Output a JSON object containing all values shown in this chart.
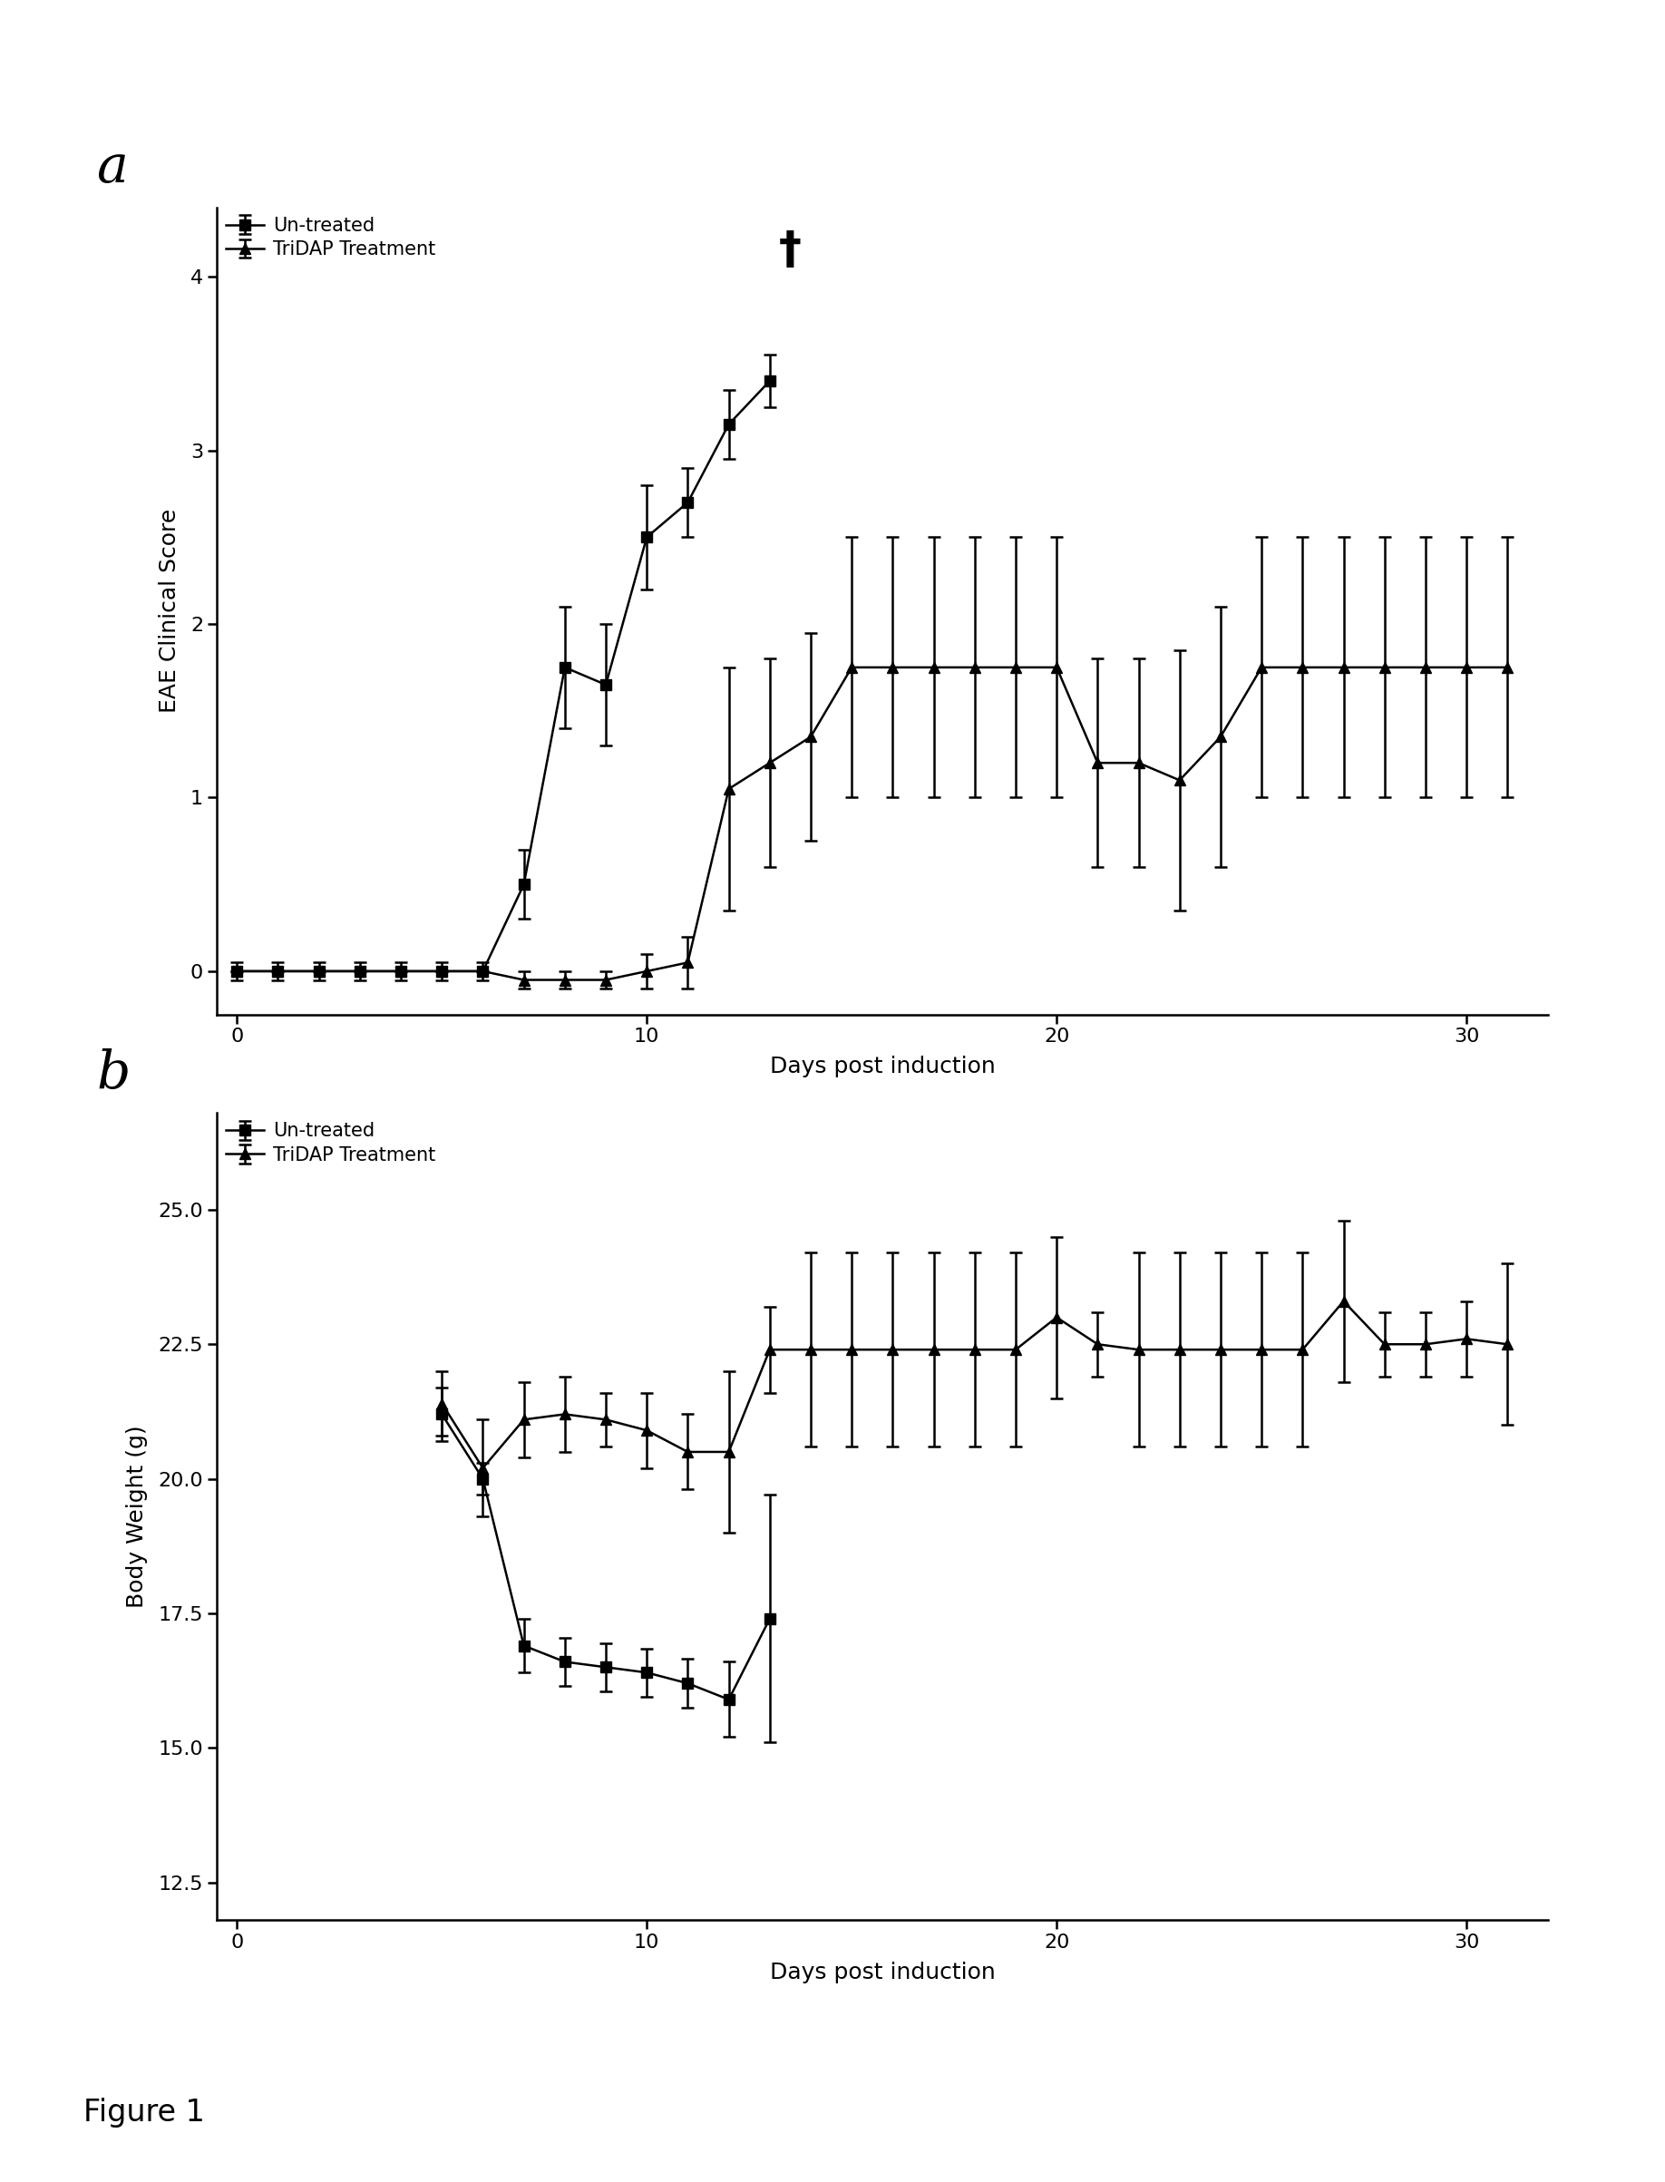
{
  "panel_a": {
    "untreated_x": [
      0,
      1,
      2,
      3,
      4,
      5,
      6,
      7,
      8,
      9,
      10,
      11,
      12,
      13
    ],
    "untreated_y": [
      0,
      0,
      0,
      0,
      0,
      0,
      0,
      0.5,
      1.75,
      1.65,
      2.5,
      2.7,
      3.15,
      3.4
    ],
    "untreated_yerr": [
      0.05,
      0.05,
      0.05,
      0.05,
      0.05,
      0.05,
      0.05,
      0.2,
      0.35,
      0.35,
      0.3,
      0.2,
      0.2,
      0.15
    ],
    "tridap_x": [
      0,
      1,
      2,
      3,
      4,
      5,
      6,
      7,
      8,
      9,
      10,
      11,
      12,
      13,
      14,
      15,
      16,
      17,
      18,
      19,
      20,
      21,
      22,
      23,
      24,
      25,
      26,
      27,
      28,
      29,
      30,
      31
    ],
    "tridap_y": [
      0,
      0,
      0,
      0,
      0,
      0,
      0,
      -0.05,
      -0.05,
      -0.05,
      0.0,
      0.05,
      1.05,
      1.2,
      1.35,
      1.75,
      1.75,
      1.75,
      1.75,
      1.75,
      1.75,
      1.2,
      1.2,
      1.1,
      1.35,
      1.75,
      1.75,
      1.75,
      1.75,
      1.75,
      1.75,
      1.75
    ],
    "tridap_yerr": [
      0.0,
      0.0,
      0.0,
      0.0,
      0.0,
      0.0,
      0.0,
      0.05,
      0.05,
      0.05,
      0.1,
      0.15,
      0.7,
      0.6,
      0.6,
      0.75,
      0.75,
      0.75,
      0.75,
      0.75,
      0.75,
      0.6,
      0.6,
      0.75,
      0.75,
      0.75,
      0.75,
      0.75,
      0.75,
      0.75,
      0.75,
      0.75
    ],
    "dagger_x": 13.5,
    "dagger_y": 4.15,
    "ylabel": "EAE Clinical Score",
    "xlabel": "Days post induction",
    "ylim": [
      -0.25,
      4.4
    ],
    "xlim": [
      -0.5,
      32
    ],
    "yticks": [
      0,
      1,
      2,
      3,
      4
    ],
    "xticks": [
      0,
      10,
      20,
      30
    ],
    "panel_label": "a"
  },
  "panel_b": {
    "untreated_x": [
      5,
      6,
      7,
      8,
      9,
      10,
      11,
      12,
      13
    ],
    "untreated_y": [
      21.2,
      20.0,
      16.9,
      16.6,
      16.5,
      16.4,
      16.2,
      15.9,
      17.4
    ],
    "untreated_yerr": [
      0.5,
      0.3,
      0.5,
      0.45,
      0.45,
      0.45,
      0.45,
      0.7,
      2.3
    ],
    "tridap_x": [
      5,
      6,
      7,
      8,
      9,
      10,
      11,
      12,
      13,
      14,
      15,
      16,
      17,
      18,
      19,
      20,
      21,
      22,
      23,
      24,
      25,
      26,
      27,
      28,
      29,
      30,
      31
    ],
    "tridap_y": [
      21.4,
      20.2,
      21.1,
      21.2,
      21.1,
      20.9,
      20.5,
      20.5,
      22.4,
      22.4,
      22.4,
      22.4,
      22.4,
      22.4,
      22.4,
      23.0,
      22.5,
      22.4,
      22.4,
      22.4,
      22.4,
      22.4,
      23.3,
      22.5,
      22.5,
      22.6,
      22.5
    ],
    "tridap_yerr": [
      0.6,
      0.9,
      0.7,
      0.7,
      0.5,
      0.7,
      0.7,
      1.5,
      0.8,
      1.8,
      1.8,
      1.8,
      1.8,
      1.8,
      1.8,
      1.5,
      0.6,
      1.8,
      1.8,
      1.8,
      1.8,
      1.8,
      1.5,
      0.6,
      0.6,
      0.7,
      1.5
    ],
    "ylabel": "Body Weight (g)",
    "xlabel": "Days post induction",
    "ylim": [
      11.8,
      26.8
    ],
    "xlim": [
      -0.5,
      32
    ],
    "yticks": [
      12.5,
      15.0,
      17.5,
      20.0,
      22.5,
      25.0
    ],
    "xticks": [
      0,
      10,
      20,
      30
    ],
    "panel_label": "b"
  },
  "legend_untreated": "Un-treated",
  "legend_tridap": "TriDAP Treatment",
  "figure_label": "Figure 1",
  "bg_color": "#ffffff",
  "line_color": "#000000"
}
